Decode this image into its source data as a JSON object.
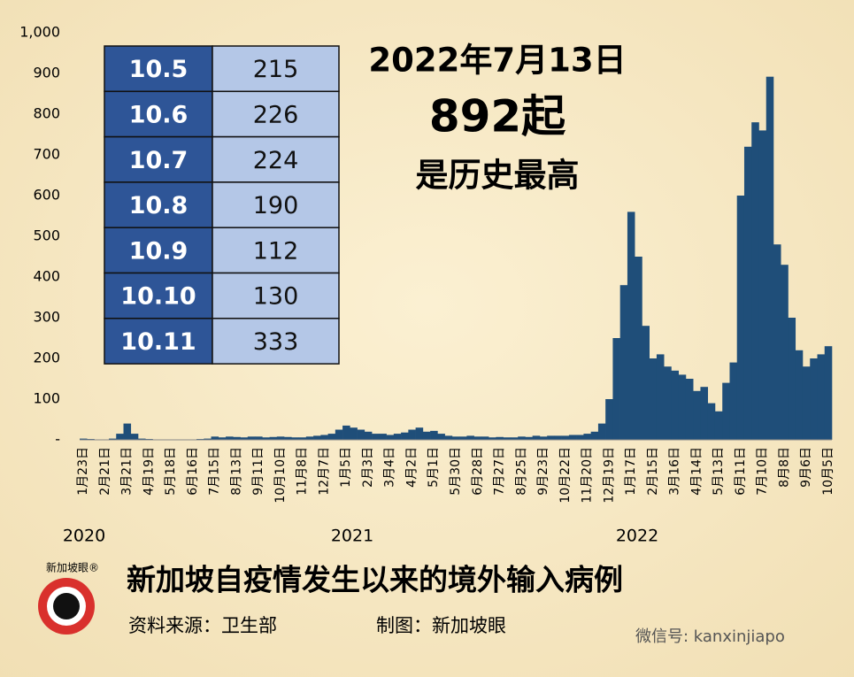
{
  "chart_data": {
    "type": "bar",
    "title": "新加坡自疫情发生以来的境外输入病例",
    "source": "资料来源：卫生部",
    "credit": "制图：新加坡眼",
    "logo": "新加坡眼®",
    "watermark": "微信号: kanxinjiapo",
    "annotation": [
      "2022年7月13日",
      "892起",
      "是历史最高"
    ],
    "years": [
      "2020",
      "2021",
      "2022"
    ],
    "color": "#1f4e79",
    "ylim": [
      0,
      1000
    ],
    "yticks": [
      {
        "value": 0,
        "label": "-"
      },
      100,
      200,
      300,
      400,
      500,
      600,
      700,
      800,
      900,
      {
        "value": 1000,
        "label": "1,000"
      }
    ],
    "categories": [
      "1月23日",
      null,
      null,
      "2月21日",
      null,
      null,
      "3月21日",
      null,
      null,
      "4月19日",
      null,
      null,
      "5月18日",
      null,
      null,
      "6月16日",
      null,
      null,
      "7月15日",
      null,
      null,
      "8月13日",
      null,
      null,
      "9月11日",
      null,
      null,
      "10月10日",
      null,
      null,
      "11月8日",
      null,
      null,
      "12月7日",
      null,
      null,
      "1月5日",
      null,
      null,
      "2月3日",
      null,
      null,
      "3月4日",
      null,
      null,
      "4月2日",
      null,
      null,
      "5月1日",
      null,
      null,
      "5月30日",
      null,
      null,
      "6月28日",
      null,
      null,
      "7月27日",
      null,
      null,
      "8月25日",
      null,
      null,
      "9月23日",
      null,
      null,
      "10月22日",
      null,
      null,
      "11月20日",
      null,
      null,
      "12月19日",
      null,
      null,
      "1月17日",
      null,
      null,
      "2月15日",
      null,
      null,
      "3月16日",
      null,
      null,
      "4月14日",
      null,
      null,
      "5月13日",
      null,
      null,
      "6月11日",
      null,
      null,
      "7月10日",
      null,
      null,
      "8月8日",
      null,
      null,
      "9月6日",
      null,
      null,
      "10月5日"
    ],
    "values": [
      3,
      2,
      1,
      1,
      3,
      15,
      40,
      15,
      3,
      2,
      1,
      1,
      0,
      0,
      0,
      1,
      2,
      3,
      8,
      6,
      8,
      7,
      6,
      8,
      8,
      6,
      7,
      8,
      7,
      6,
      6,
      8,
      10,
      12,
      15,
      25,
      35,
      30,
      25,
      20,
      15,
      15,
      12,
      15,
      18,
      25,
      30,
      20,
      22,
      15,
      10,
      8,
      8,
      10,
      8,
      8,
      6,
      7,
      6,
      6,
      8,
      7,
      10,
      8,
      10,
      10,
      10,
      12,
      12,
      15,
      20,
      40,
      100,
      250,
      380,
      560,
      450,
      280,
      200,
      210,
      180,
      170,
      160,
      150,
      120,
      130,
      90,
      70,
      140,
      190,
      600,
      720,
      780,
      760,
      892,
      480,
      430,
      300,
      220,
      180,
      200,
      210,
      230
    ],
    "table": {
      "rows": [
        [
          "10.5",
          215
        ],
        [
          "10.6",
          226
        ],
        [
          "10.7",
          224
        ],
        [
          "10.8",
          190
        ],
        [
          "10.9",
          112
        ],
        [
          "10.10",
          130
        ],
        [
          "10.11",
          333
        ]
      ]
    }
  }
}
